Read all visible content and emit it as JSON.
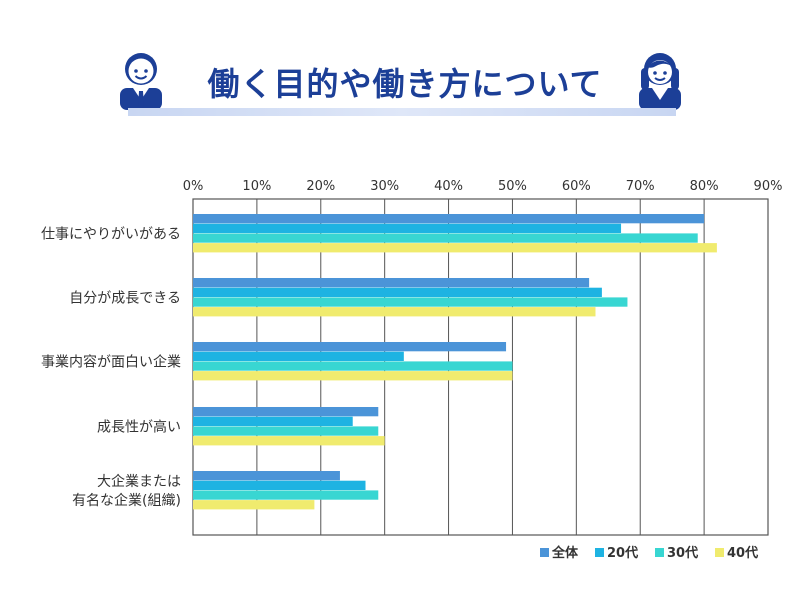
{
  "header": {
    "title": "働く目的や働き方について"
  },
  "colors": {
    "title": "#1c3f97",
    "grid": "#555555",
    "series": [
      "#4b94d8",
      "#1eb3e2",
      "#38d6d2",
      "#f0eb6e"
    ]
  },
  "icons": {
    "left": "businessman-avatar-icon",
    "right": "businesswoman-avatar-icon"
  },
  "chart_data": {
    "type": "bar",
    "orientation": "horizontal",
    "categories": [
      "仕事にやりがいがある",
      "自分が成長できる",
      "事業内容が面白い企業",
      "成長性が高い",
      [
        "大企業または",
        "有名な企業(組織)"
      ]
    ],
    "series": [
      {
        "name": "全体",
        "values": [
          80,
          62,
          49,
          29,
          23
        ]
      },
      {
        "name": "20代",
        "values": [
          67,
          64,
          33,
          25,
          27
        ]
      },
      {
        "name": "30代",
        "values": [
          79,
          68,
          50,
          29,
          29
        ]
      },
      {
        "name": "40代",
        "values": [
          82,
          63,
          50,
          30,
          19
        ]
      }
    ],
    "xlim": [
      0,
      90
    ],
    "xticks": [
      "0%",
      "10%",
      "20%",
      "30%",
      "40%",
      "50%",
      "60%",
      "70%",
      "80%",
      "90%"
    ],
    "grid": true,
    "legend": "bottom-right"
  }
}
